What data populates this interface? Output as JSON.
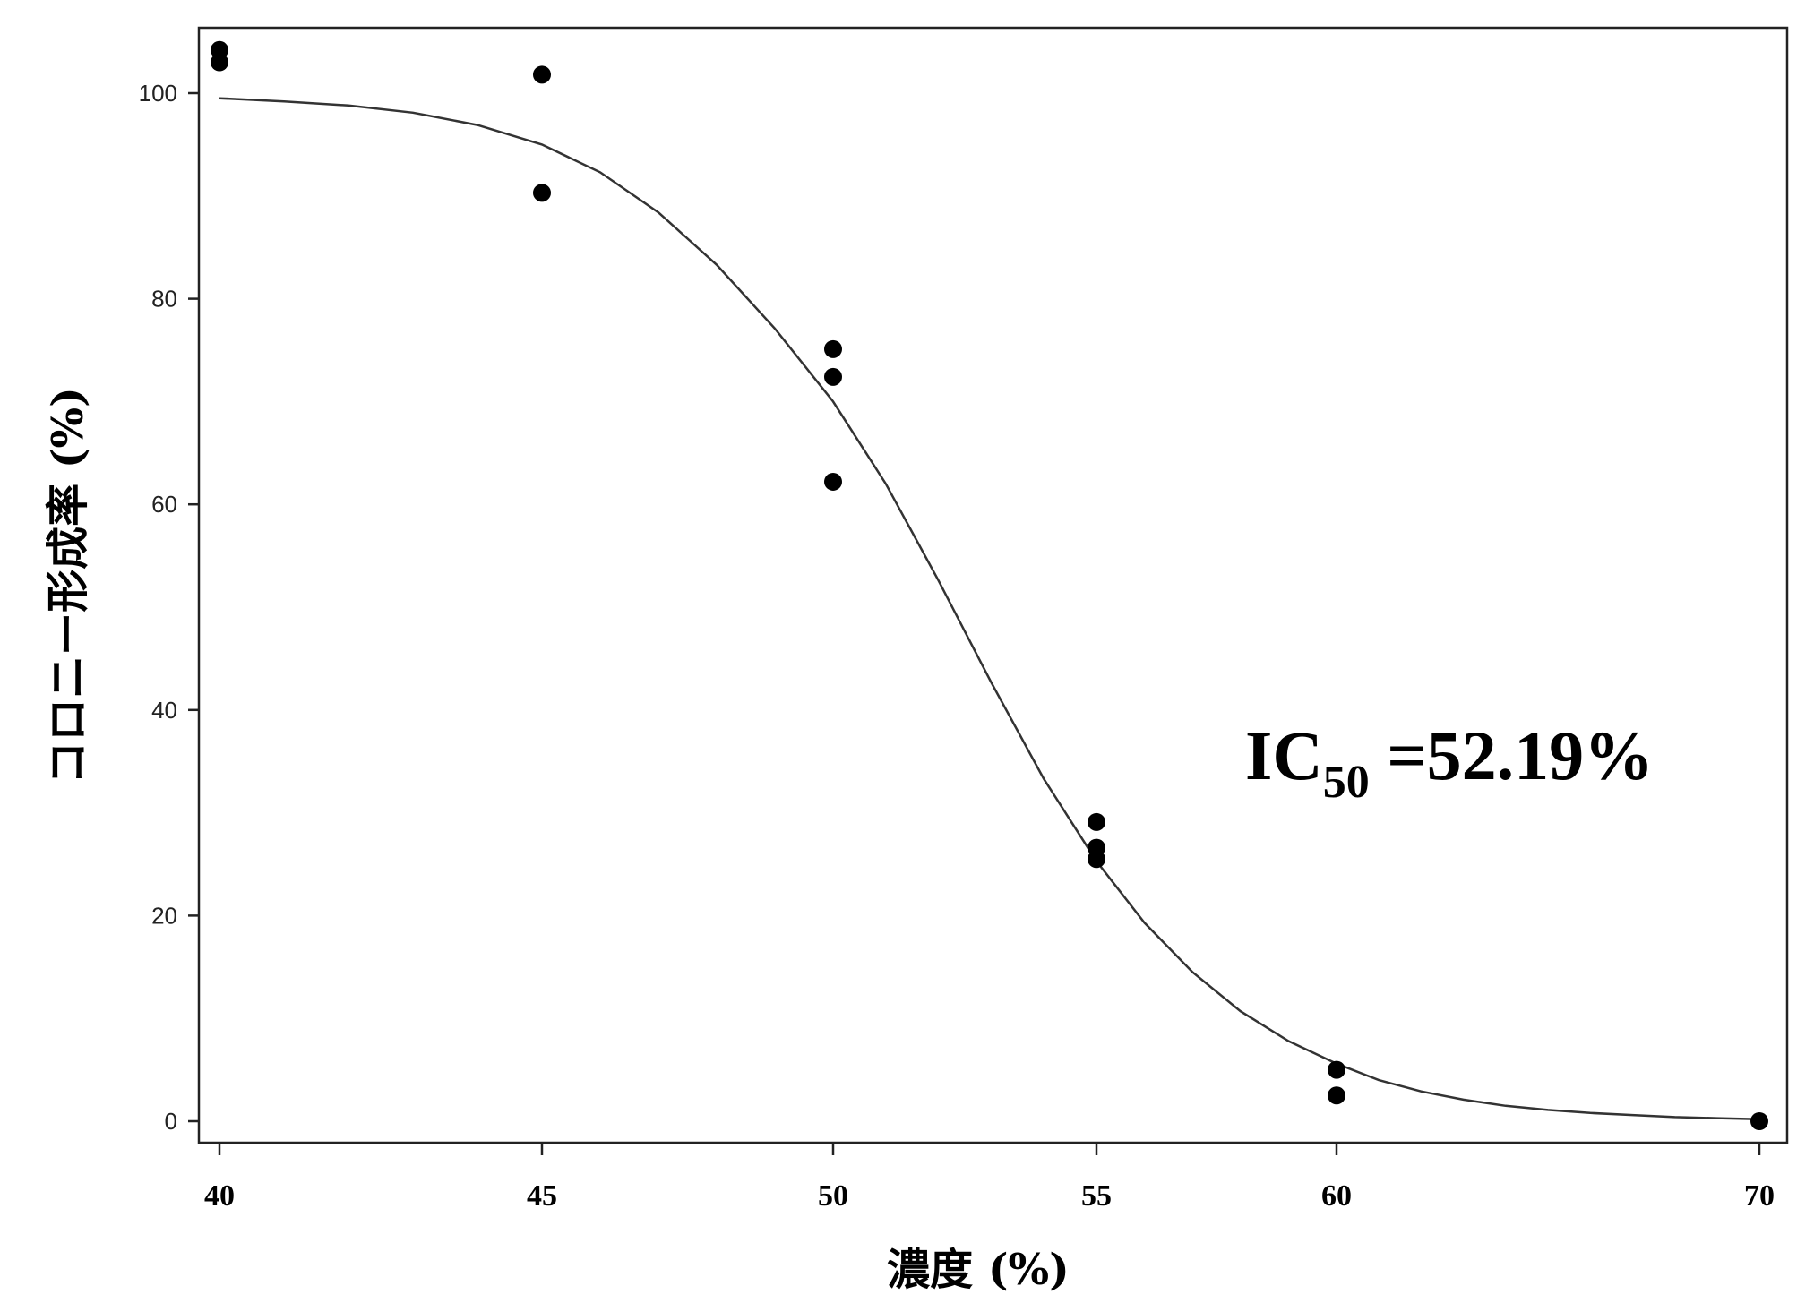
{
  "chart_data": {
    "type": "scatter",
    "title": "",
    "xlabel": "濃度 (%)",
    "ylabel": "コロニー形成率 (%)",
    "xticks": [
      40,
      45,
      50,
      55,
      60,
      70
    ],
    "yticks": [
      0,
      20,
      40,
      60,
      80,
      100
    ],
    "grid": false,
    "legend": "none",
    "annotation": {
      "text": "IC",
      "subscript": "50",
      "rest": " =52.19%"
    },
    "series": [
      {
        "points": [
          {
            "x": 40,
            "y": 104.2
          },
          {
            "x": 40,
            "y": 103.0
          },
          {
            "x": 45,
            "y": 101.8
          },
          {
            "x": 45,
            "y": 90.3
          },
          {
            "x": 50,
            "y": 75.1
          },
          {
            "x": 50,
            "y": 72.4
          },
          {
            "x": 50,
            "y": 62.2
          },
          {
            "x": 55,
            "y": 29.1
          },
          {
            "x": 55,
            "y": 26.6
          },
          {
            "x": 55,
            "y": 25.5
          },
          {
            "x": 60,
            "y": 5.0
          },
          {
            "x": 60,
            "y": 2.5
          },
          {
            "x": 70,
            "y": 0.0
          }
        ]
      },
      {
        "curve": [
          {
            "x": 40,
            "y": 99.5
          },
          {
            "x": 41,
            "y": 99.2
          },
          {
            "x": 42,
            "y": 98.8
          },
          {
            "x": 43,
            "y": 98.1
          },
          {
            "x": 44,
            "y": 96.9
          },
          {
            "x": 45,
            "y": 95.0
          },
          {
            "x": 46,
            "y": 92.3
          },
          {
            "x": 47,
            "y": 88.4
          },
          {
            "x": 48,
            "y": 83.3
          },
          {
            "x": 49,
            "y": 77.1
          },
          {
            "x": 50,
            "y": 70.0
          },
          {
            "x": 51,
            "y": 62.0
          },
          {
            "x": 52,
            "y": 52.6
          },
          {
            "x": 53,
            "y": 42.7
          },
          {
            "x": 54,
            "y": 33.3
          },
          {
            "x": 55,
            "y": 25.3
          },
          {
            "x": 56,
            "y": 19.3
          },
          {
            "x": 57,
            "y": 14.5
          },
          {
            "x": 58,
            "y": 10.7
          },
          {
            "x": 59,
            "y": 7.8
          },
          {
            "x": 60,
            "y": 5.6
          },
          {
            "x": 61,
            "y": 4.0
          },
          {
            "x": 62,
            "y": 2.9
          },
          {
            "x": 63,
            "y": 2.1
          },
          {
            "x": 64,
            "y": 1.5
          },
          {
            "x": 65,
            "y": 1.1
          },
          {
            "x": 66,
            "y": 0.8
          },
          {
            "x": 67,
            "y": 0.6
          },
          {
            "x": 68,
            "y": 0.4
          },
          {
            "x": 69,
            "y": 0.3
          },
          {
            "x": 70,
            "y": 0.2
          }
        ]
      }
    ]
  }
}
